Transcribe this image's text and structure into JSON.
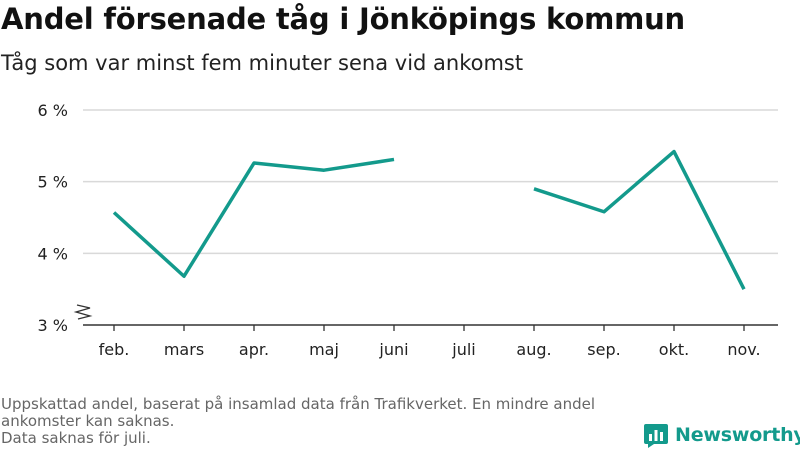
{
  "title": "Andel försenade tåg i Jönköpings kommun",
  "subtitle": "Tåg som var minst fem minuter sena vid ankomst",
  "footer": {
    "line1": "Uppskattad andel, baserat på insamlad data från Trafikverket. En mindre andel ankomster kan saknas.",
    "line2": "Data saknas för juli."
  },
  "brand": {
    "name": "Newsworthy"
  },
  "colors": {
    "line": "#139a8c",
    "grid": "#d9d9d9",
    "axis": "#333333",
    "brand": "#139a8c"
  },
  "chart_data": {
    "type": "line",
    "title": "Andel försenade tåg i Jönköpings kommun",
    "subtitle": "Tåg som var minst fem minuter sena vid ankomst",
    "categories": [
      "feb.",
      "mars",
      "apr.",
      "maj",
      "juni",
      "juli",
      "aug.",
      "sep.",
      "okt.",
      "nov."
    ],
    "series": [
      {
        "values": [
          4.57,
          3.68,
          5.26,
          5.16,
          5.31,
          null,
          4.9,
          4.58,
          5.42,
          3.5
        ]
      }
    ],
    "yticks": [
      3,
      4,
      5,
      6
    ],
    "ytick_labels": [
      "3 %",
      "4 %",
      "5 %",
      "6 %"
    ],
    "ylim": [
      3,
      6
    ],
    "y_axis_break": true,
    "grid": true,
    "xlabel": "",
    "ylabel": ""
  }
}
